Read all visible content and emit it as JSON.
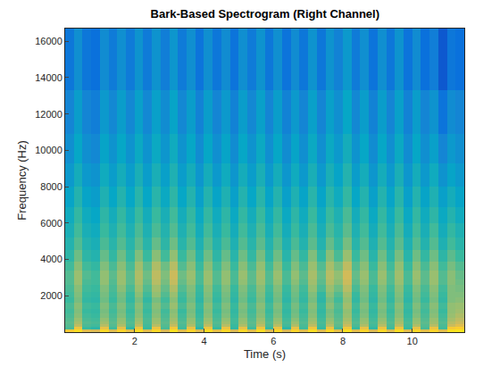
{
  "chart_data": {
    "type": "heatmap",
    "title": "Bark-Based Spectrogram (Right Channel)",
    "x_label": "Time (s)",
    "y_label": "Frequency (Hz)",
    "xlim": [
      0,
      11.5
    ],
    "ylim": [
      0,
      16700
    ],
    "xticks": [
      2,
      4,
      6,
      8,
      10
    ],
    "yticks": [
      2000,
      4000,
      6000,
      8000,
      10000,
      12000,
      14000,
      16000
    ],
    "zlim": [
      20,
      100
    ],
    "x": [
      0,
      0.25,
      0.5,
      0.75,
      1,
      1.25,
      1.5,
      1.75,
      2,
      2.25,
      2.5,
      2.75,
      3,
      3.25,
      3.5,
      3.75,
      4,
      4.25,
      4.5,
      4.75,
      5,
      5.25,
      5.5,
      5.75,
      6,
      6.25,
      6.5,
      6.75,
      7,
      7.25,
      7.5,
      7.75,
      8,
      8.25,
      8.5,
      8.75,
      9,
      9.25,
      9.5,
      9.75,
      10,
      10.25,
      10.5,
      10.75,
      11,
      11.25,
      11.5
    ],
    "y": [
      0,
      150,
      300,
      450,
      600,
      800,
      1050,
      1300,
      1600,
      1900,
      2200,
      2600,
      2900,
      3400,
      3900,
      4500,
      5200,
      6000,
      6900,
      8000,
      9300,
      10900,
      13300,
      16700
    ],
    "z": [
      [
        88,
        93,
        82,
        80,
        92,
        81,
        91,
        83,
        93,
        82,
        92,
        80,
        94,
        82,
        91,
        81,
        93,
        83,
        92,
        80,
        92,
        82,
        93,
        81,
        92,
        80,
        91,
        82,
        93,
        81,
        92,
        83,
        94,
        82,
        91,
        80,
        92,
        81,
        93,
        82,
        92,
        83,
        91,
        82,
        94,
        95
      ],
      [
        62,
        86,
        60,
        58,
        84,
        61,
        83,
        59,
        86,
        60,
        85,
        62,
        87,
        61,
        84,
        58,
        86,
        60,
        85,
        59,
        84,
        61,
        86,
        60,
        85,
        58,
        84,
        61,
        86,
        60,
        85,
        62,
        87,
        60,
        84,
        59,
        85,
        61,
        86,
        60,
        84,
        62,
        85,
        61,
        88,
        90
      ],
      [
        63,
        76,
        62,
        61,
        75,
        63,
        74,
        62,
        76,
        61,
        75,
        63,
        77,
        62,
        74,
        61,
        76,
        62,
        75,
        60,
        74,
        63,
        76,
        62,
        75,
        61,
        74,
        62,
        76,
        61,
        75,
        64,
        78,
        62,
        74,
        61,
        75,
        62,
        76,
        61,
        74,
        63,
        75,
        62,
        78,
        82
      ],
      [
        64,
        73,
        63,
        62,
        72,
        64,
        71,
        63,
        73,
        62,
        72,
        64,
        74,
        63,
        71,
        62,
        73,
        63,
        72,
        61,
        71,
        64,
        73,
        63,
        72,
        62,
        71,
        63,
        73,
        62,
        72,
        65,
        75,
        63,
        71,
        62,
        72,
        63,
        73,
        62,
        71,
        64,
        72,
        63,
        75,
        78
      ],
      [
        63,
        71,
        62,
        61,
        70,
        63,
        70,
        62,
        71,
        62,
        71,
        63,
        72,
        62,
        70,
        61,
        71,
        62,
        70,
        61,
        70,
        63,
        71,
        62,
        70,
        61,
        69,
        62,
        71,
        61,
        70,
        64,
        73,
        62,
        70,
        61,
        70,
        62,
        71,
        61,
        70,
        63,
        71,
        62,
        73,
        76
      ],
      [
        62,
        69,
        61,
        60,
        68,
        62,
        68,
        61,
        69,
        61,
        69,
        62,
        70,
        61,
        68,
        60,
        69,
        61,
        68,
        60,
        68,
        62,
        69,
        61,
        68,
        60,
        67,
        61,
        69,
        60,
        68,
        63,
        71,
        61,
        68,
        60,
        68,
        61,
        69,
        60,
        68,
        62,
        69,
        61,
        71,
        74
      ],
      [
        61,
        68,
        60,
        59,
        67,
        61,
        67,
        60,
        68,
        60,
        68,
        61,
        69,
        60,
        67,
        59,
        68,
        60,
        67,
        59,
        67,
        61,
        68,
        60,
        67,
        59,
        66,
        60,
        68,
        59,
        67,
        62,
        70,
        60,
        67,
        59,
        67,
        60,
        68,
        59,
        67,
        61,
        68,
        60,
        70,
        72
      ],
      [
        62,
        69,
        61,
        60,
        68,
        62,
        68,
        61,
        69,
        61,
        69,
        63,
        71,
        62,
        68,
        60,
        69,
        61,
        68,
        60,
        68,
        62,
        69,
        61,
        68,
        60,
        67,
        61,
        69,
        60,
        69,
        63,
        72,
        61,
        68,
        60,
        68,
        61,
        69,
        60,
        68,
        62,
        69,
        61,
        70,
        71
      ],
      [
        60,
        67,
        59,
        58,
        66,
        60,
        66,
        59,
        67,
        59,
        67,
        61,
        69,
        60,
        66,
        58,
        67,
        59,
        66,
        58,
        66,
        60,
        67,
        59,
        66,
        58,
        65,
        59,
        67,
        58,
        67,
        61,
        70,
        59,
        66,
        58,
        66,
        59,
        67,
        58,
        66,
        60,
        67,
        59,
        68,
        69
      ],
      [
        61,
        68,
        60,
        59,
        67,
        61,
        67,
        60,
        69,
        61,
        70,
        63,
        71,
        61,
        67,
        59,
        68,
        60,
        67,
        59,
        67,
        61,
        68,
        60,
        67,
        59,
        66,
        60,
        68,
        59,
        69,
        63,
        72,
        60,
        67,
        59,
        67,
        60,
        68,
        59,
        67,
        61,
        68,
        60,
        68,
        68
      ],
      [
        62,
        69,
        61,
        60,
        68,
        62,
        69,
        62,
        71,
        63,
        72,
        65,
        74,
        63,
        68,
        60,
        69,
        61,
        68,
        60,
        68,
        62,
        69,
        61,
        68,
        60,
        67,
        61,
        70,
        62,
        71,
        66,
        75,
        62,
        68,
        60,
        68,
        61,
        69,
        60,
        68,
        62,
        69,
        61,
        68,
        67
      ],
      [
        63,
        71,
        62,
        61,
        70,
        63,
        71,
        64,
        73,
        65,
        75,
        67,
        77,
        65,
        70,
        62,
        71,
        63,
        70,
        62,
        70,
        64,
        71,
        63,
        70,
        62,
        69,
        63,
        72,
        64,
        74,
        69,
        78,
        64,
        70,
        62,
        70,
        63,
        71,
        62,
        70,
        64,
        71,
        63,
        69,
        66
      ],
      [
        63,
        71,
        63,
        61,
        70,
        64,
        71,
        64,
        74,
        66,
        76,
        68,
        78,
        66,
        71,
        62,
        71,
        63,
        70,
        62,
        71,
        64,
        72,
        63,
        71,
        62,
        70,
        64,
        73,
        65,
        75,
        70,
        79,
        65,
        71,
        62,
        71,
        63,
        72,
        62,
        71,
        64,
        71,
        63,
        69,
        65
      ],
      [
        61,
        69,
        61,
        59,
        68,
        62,
        69,
        62,
        72,
        64,
        74,
        66,
        75,
        63,
        69,
        60,
        69,
        61,
        68,
        60,
        69,
        62,
        70,
        61,
        69,
        60,
        68,
        62,
        71,
        63,
        73,
        67,
        76,
        63,
        69,
        60,
        69,
        61,
        70,
        60,
        69,
        62,
        69,
        61,
        67,
        63
      ],
      [
        58,
        66,
        58,
        56,
        65,
        59,
        66,
        59,
        68,
        60,
        69,
        61,
        70,
        60,
        66,
        57,
        66,
        58,
        65,
        57,
        66,
        59,
        67,
        58,
        66,
        57,
        65,
        59,
        68,
        59,
        69,
        62,
        71,
        60,
        66,
        57,
        66,
        58,
        67,
        57,
        66,
        59,
        66,
        58,
        64,
        60
      ],
      [
        56,
        63,
        56,
        54,
        62,
        57,
        63,
        57,
        64,
        57,
        65,
        58,
        66,
        57,
        63,
        55,
        63,
        56,
        62,
        55,
        63,
        57,
        64,
        56,
        63,
        55,
        62,
        56,
        64,
        56,
        65,
        59,
        67,
        57,
        63,
        55,
        63,
        56,
        64,
        55,
        63,
        56,
        63,
        55,
        61,
        57
      ],
      [
        54,
        61,
        54,
        52,
        60,
        55,
        61,
        55,
        62,
        55,
        62,
        56,
        63,
        55,
        61,
        53,
        61,
        54,
        60,
        53,
        61,
        55,
        62,
        54,
        61,
        53,
        60,
        54,
        62,
        54,
        62,
        57,
        64,
        55,
        61,
        53,
        61,
        54,
        62,
        53,
        61,
        54,
        61,
        53,
        59,
        55
      ],
      [
        52,
        59,
        52,
        50,
        58,
        53,
        59,
        53,
        60,
        53,
        60,
        54,
        61,
        53,
        59,
        51,
        59,
        52,
        58,
        51,
        59,
        53,
        60,
        52,
        59,
        51,
        58,
        52,
        60,
        52,
        60,
        55,
        62,
        53,
        59,
        51,
        59,
        52,
        60,
        51,
        59,
        52,
        58,
        51,
        56,
        52
      ],
      [
        49,
        56,
        49,
        47,
        55,
        50,
        56,
        50,
        57,
        50,
        57,
        51,
        58,
        50,
        56,
        48,
        56,
        49,
        55,
        48,
        56,
        50,
        57,
        49,
        56,
        48,
        55,
        49,
        57,
        49,
        57,
        52,
        59,
        50,
        56,
        48,
        56,
        49,
        57,
        48,
        56,
        49,
        55,
        48,
        53,
        49
      ],
      [
        46,
        53,
        46,
        44,
        52,
        47,
        53,
        47,
        54,
        47,
        54,
        48,
        55,
        47,
        53,
        45,
        53,
        46,
        52,
        45,
        53,
        47,
        54,
        46,
        53,
        45,
        52,
        46,
        54,
        46,
        54,
        49,
        56,
        47,
        53,
        45,
        53,
        46,
        54,
        45,
        53,
        46,
        52,
        44,
        49,
        46
      ],
      [
        43,
        50,
        43,
        41,
        49,
        44,
        50,
        44,
        51,
        44,
        51,
        45,
        52,
        44,
        50,
        42,
        50,
        43,
        49,
        42,
        50,
        44,
        51,
        43,
        50,
        42,
        49,
        43,
        51,
        43,
        51,
        46,
        53,
        44,
        50,
        42,
        50,
        43,
        51,
        42,
        50,
        43,
        48,
        40,
        46,
        43
      ],
      [
        40,
        47,
        40,
        38,
        46,
        41,
        47,
        41,
        48,
        41,
        48,
        42,
        49,
        41,
        47,
        39,
        47,
        40,
        46,
        39,
        47,
        41,
        48,
        40,
        47,
        39,
        46,
        40,
        48,
        40,
        48,
        43,
        50,
        41,
        47,
        39,
        47,
        40,
        48,
        39,
        47,
        40,
        44,
        35,
        42,
        40
      ],
      [
        36,
        43,
        36,
        34,
        42,
        37,
        43,
        37,
        44,
        37,
        44,
        38,
        45,
        37,
        43,
        35,
        43,
        36,
        42,
        35,
        43,
        37,
        44,
        36,
        43,
        35,
        42,
        36,
        44,
        36,
        44,
        39,
        46,
        37,
        43,
        35,
        43,
        36,
        44,
        35,
        42,
        34,
        38,
        28,
        36,
        34
      ]
    ]
  }
}
